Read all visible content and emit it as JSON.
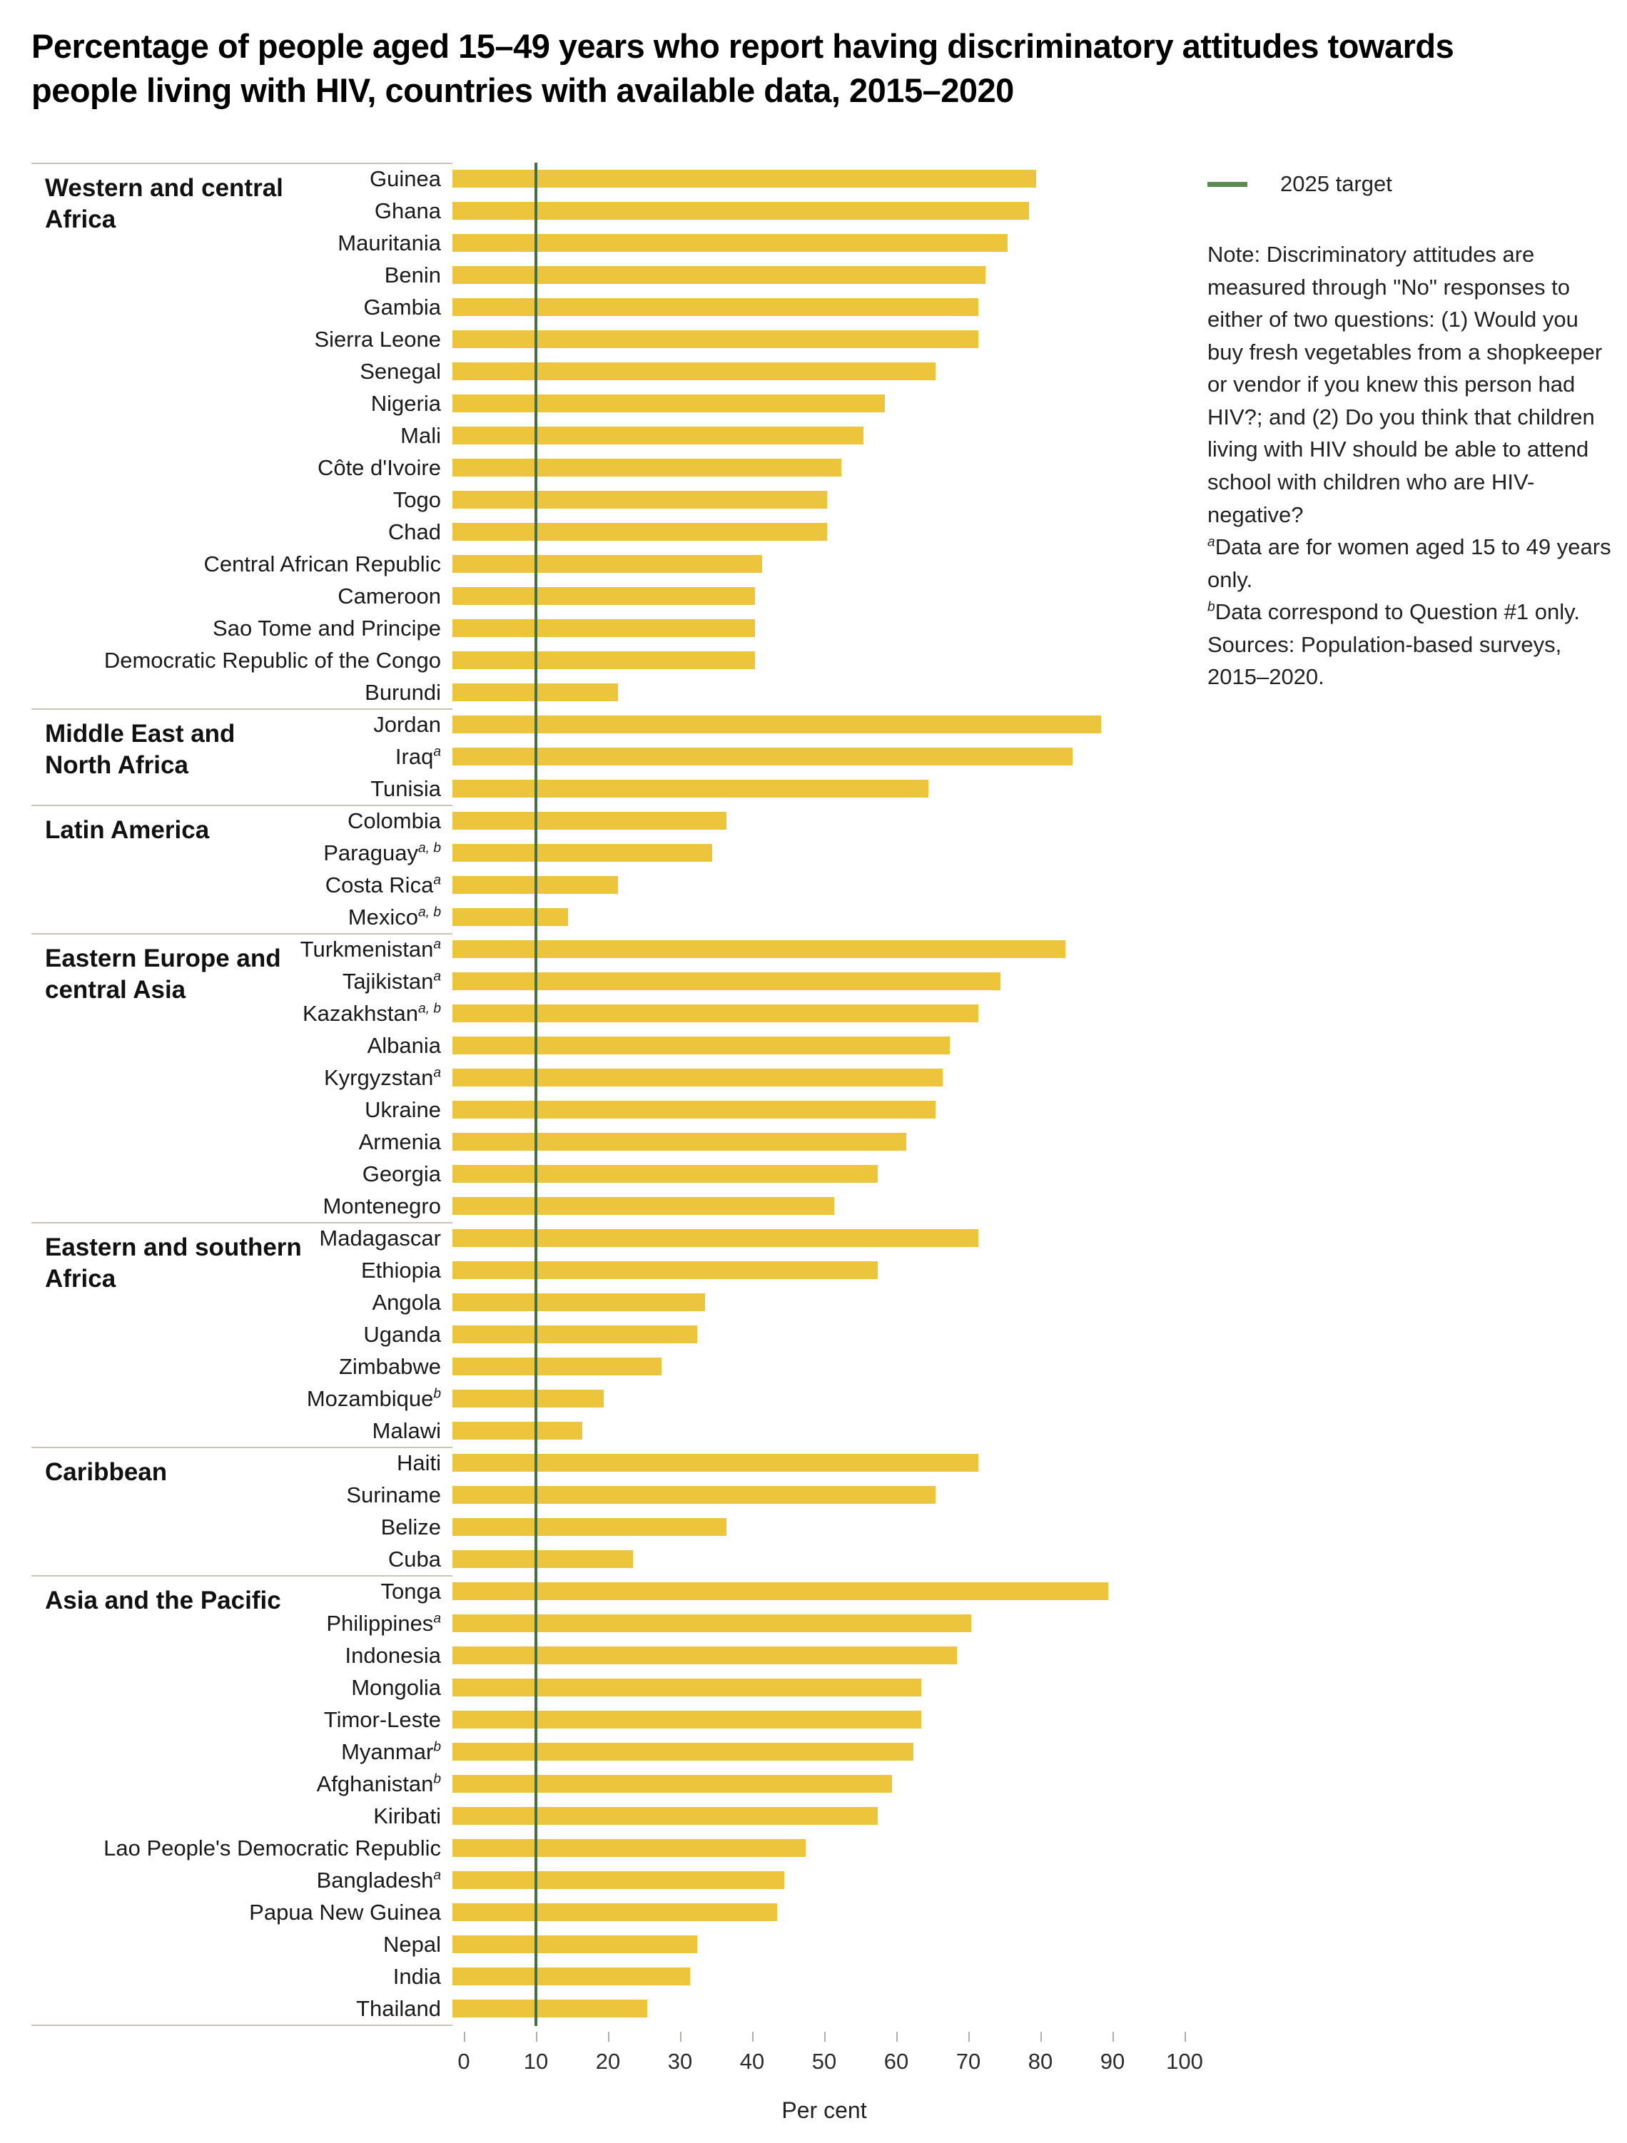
{
  "title": "Percentage of people aged 15–49 years who report having discriminatory attitudes towards people living with HIV, countries with available data, 2015–2020",
  "legend": {
    "label": "2025 target",
    "color": "#5c8b51"
  },
  "colors": {
    "bar": "#ecc53c",
    "target_line": "#447041",
    "separator": "#c9c4ba"
  },
  "note_lines": [
    {
      "sup": "",
      "text": "Note: Discriminatory attitudes are measured through \"No\" responses to either of two questions: (1) Would you buy fresh vegetables from a shopkeeper or vendor if you knew this person had HIV?; and (2) Do you think that children living with HIV should be able to attend school with children who are HIV-negative?"
    },
    {
      "sup": "a",
      "text": "Data are for women aged 15 to 49 years only."
    },
    {
      "sup": "b",
      "text": "Data correspond to Question #1 only."
    },
    {
      "sup": "",
      "text": "Sources: Population-based surveys, 2015–2020."
    }
  ],
  "chart_data": {
    "type": "bar",
    "orientation": "horizontal",
    "xlabel": "Per cent",
    "xlim": [
      0,
      100
    ],
    "ticks": [
      0,
      10,
      20,
      30,
      40,
      50,
      60,
      70,
      80,
      90,
      100
    ],
    "target_value": 10,
    "grid": false,
    "legend_position": "top-right",
    "groups": [
      {
        "region": "Western and central Africa",
        "countries": [
          {
            "name": "Guinea",
            "sup": "",
            "value": 81
          },
          {
            "name": "Ghana",
            "sup": "",
            "value": 80
          },
          {
            "name": "Mauritania",
            "sup": "",
            "value": 77
          },
          {
            "name": "Benin",
            "sup": "",
            "value": 74
          },
          {
            "name": "Gambia",
            "sup": "",
            "value": 73
          },
          {
            "name": "Sierra Leone",
            "sup": "",
            "value": 73
          },
          {
            "name": "Senegal",
            "sup": "",
            "value": 67
          },
          {
            "name": "Nigeria",
            "sup": "",
            "value": 60
          },
          {
            "name": "Mali",
            "sup": "",
            "value": 57
          },
          {
            "name": "Côte d'Ivoire",
            "sup": "",
            "value": 54
          },
          {
            "name": "Togo",
            "sup": "",
            "value": 52
          },
          {
            "name": "Chad",
            "sup": "",
            "value": 52
          },
          {
            "name": "Central African Republic",
            "sup": "",
            "value": 43
          },
          {
            "name": "Cameroon",
            "sup": "",
            "value": 42
          },
          {
            "name": "Sao Tome and Principe",
            "sup": "",
            "value": 42
          },
          {
            "name": "Democratic Republic of the Congo",
            "sup": "",
            "value": 42
          },
          {
            "name": "Burundi",
            "sup": "",
            "value": 23
          }
        ]
      },
      {
        "region": "Middle East and North Africa",
        "countries": [
          {
            "name": "Jordan",
            "sup": "",
            "value": 90
          },
          {
            "name": "Iraq",
            "sup": "a",
            "value": 86
          },
          {
            "name": "Tunisia",
            "sup": "",
            "value": 66
          }
        ]
      },
      {
        "region": "Latin America",
        "countries": [
          {
            "name": "Colombia",
            "sup": "",
            "value": 38
          },
          {
            "name": "Paraguay",
            "sup": "a, b",
            "value": 36
          },
          {
            "name": "Costa Rica",
            "sup": "a",
            "value": 23
          },
          {
            "name": "Mexico",
            "sup": "a, b",
            "value": 16
          }
        ]
      },
      {
        "region": "Eastern Europe and central Asia",
        "countries": [
          {
            "name": "Turkmenistan",
            "sup": "a",
            "value": 85
          },
          {
            "name": "Tajikistan",
            "sup": "a",
            "value": 76
          },
          {
            "name": "Kazakhstan",
            "sup": "a, b",
            "value": 73
          },
          {
            "name": "Albania",
            "sup": "",
            "value": 69
          },
          {
            "name": "Kyrgyzstan",
            "sup": "a",
            "value": 68
          },
          {
            "name": "Ukraine",
            "sup": "",
            "value": 67
          },
          {
            "name": "Armenia",
            "sup": "",
            "value": 63
          },
          {
            "name": "Georgia",
            "sup": "",
            "value": 59
          },
          {
            "name": "Montenegro",
            "sup": "",
            "value": 53
          }
        ]
      },
      {
        "region": "Eastern and southern Africa",
        "countries": [
          {
            "name": "Madagascar",
            "sup": "",
            "value": 73
          },
          {
            "name": "Ethiopia",
            "sup": "",
            "value": 59
          },
          {
            "name": "Angola",
            "sup": "",
            "value": 35
          },
          {
            "name": "Uganda",
            "sup": "",
            "value": 34
          },
          {
            "name": "Zimbabwe",
            "sup": "",
            "value": 29
          },
          {
            "name": "Mozambique",
            "sup": "b",
            "value": 21
          },
          {
            "name": "Malawi",
            "sup": "",
            "value": 18
          }
        ]
      },
      {
        "region": "Caribbean",
        "countries": [
          {
            "name": "Haiti",
            "sup": "",
            "value": 73
          },
          {
            "name": "Suriname",
            "sup": "",
            "value": 67
          },
          {
            "name": "Belize",
            "sup": "",
            "value": 38
          },
          {
            "name": "Cuba",
            "sup": "",
            "value": 25
          }
        ]
      },
      {
        "region": "Asia and the Pacific",
        "countries": [
          {
            "name": "Tonga",
            "sup": "",
            "value": 91
          },
          {
            "name": "Philippines",
            "sup": "a",
            "value": 72
          },
          {
            "name": "Indonesia",
            "sup": "",
            "value": 70
          },
          {
            "name": "Mongolia",
            "sup": "",
            "value": 65
          },
          {
            "name": "Timor-Leste",
            "sup": "",
            "value": 65
          },
          {
            "name": "Myanmar",
            "sup": "b",
            "value": 64
          },
          {
            "name": "Afghanistan",
            "sup": "b",
            "value": 61
          },
          {
            "name": "Kiribati",
            "sup": "",
            "value": 59
          },
          {
            "name": "Lao People's Democratic Republic",
            "sup": "",
            "value": 49
          },
          {
            "name": "Bangladesh",
            "sup": "a",
            "value": 46
          },
          {
            "name": "Papua New Guinea",
            "sup": "",
            "value": 45
          },
          {
            "name": "Nepal",
            "sup": "",
            "value": 34
          },
          {
            "name": "India",
            "sup": "",
            "value": 33
          },
          {
            "name": "Thailand",
            "sup": "",
            "value": 27
          }
        ]
      }
    ]
  }
}
